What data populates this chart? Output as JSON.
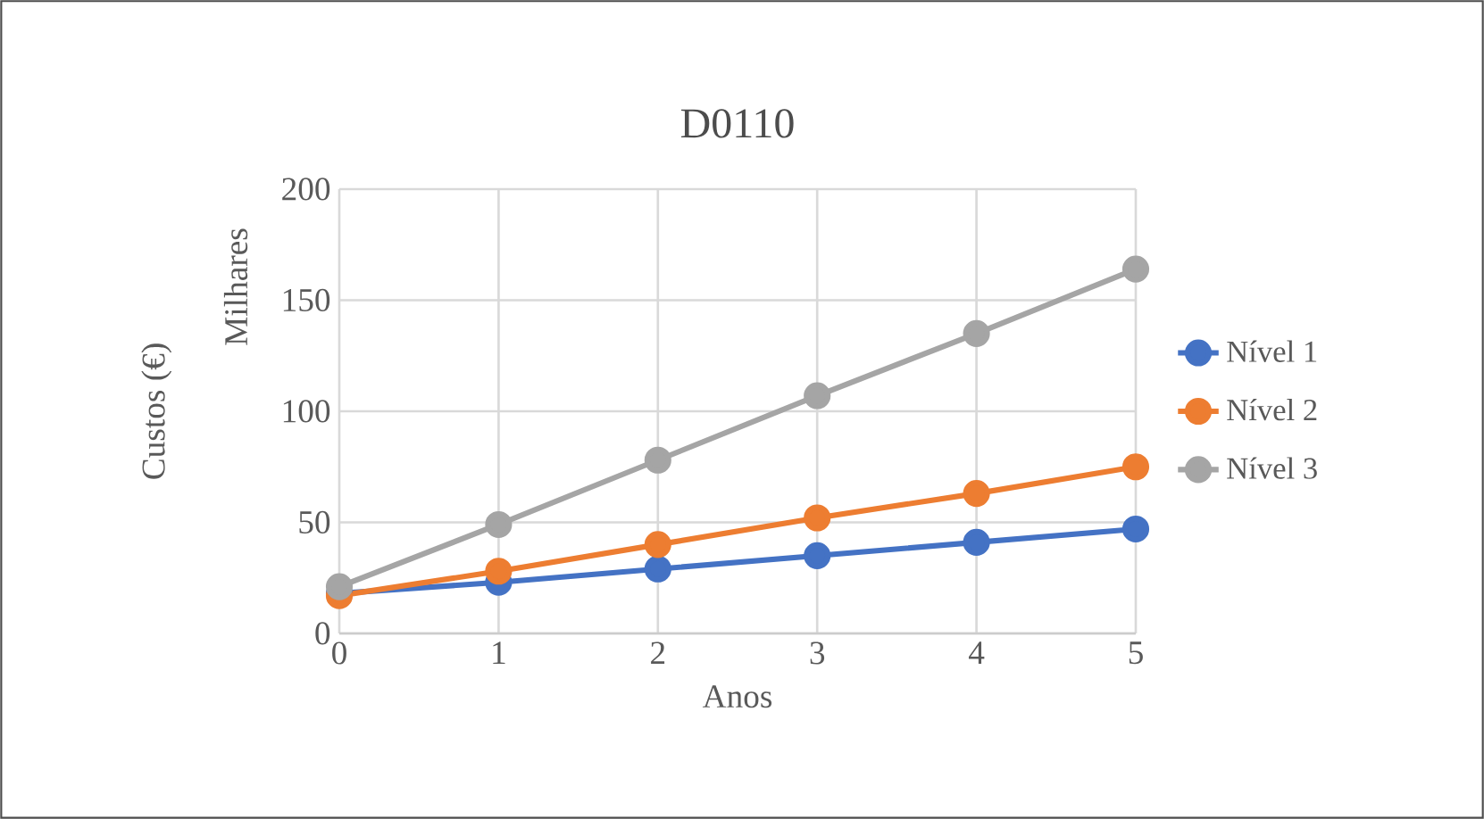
{
  "chart_data": {
    "type": "line",
    "title": "D0110",
    "xlabel": "Anos",
    "ylabel": "Custos (€)",
    "annotations": [
      "Milhares"
    ],
    "x": [
      0,
      1,
      2,
      3,
      4,
      5
    ],
    "series": [
      {
        "name": "Nível 1",
        "color": "#4472c4",
        "values": [
          18,
          23,
          29,
          35,
          41,
          47
        ]
      },
      {
        "name": "Nível 2",
        "color": "#ed7d31",
        "values": [
          17,
          28,
          40,
          52,
          63,
          75
        ]
      },
      {
        "name": "Nível 3",
        "color": "#a5a5a5",
        "values": [
          21,
          49,
          78,
          107,
          135,
          164
        ]
      }
    ],
    "xlim": [
      0,
      5
    ],
    "ylim": [
      0,
      200
    ],
    "xticks": [
      0,
      1,
      2,
      3,
      4,
      5
    ],
    "yticks": [
      0,
      50,
      100,
      150,
      200
    ],
    "grid": true,
    "legend": "right",
    "marker": "circle",
    "line_style": "solid"
  }
}
